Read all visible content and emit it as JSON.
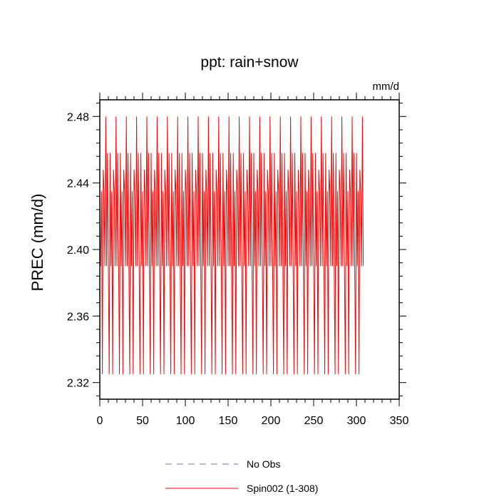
{
  "chart_data": {
    "type": "line",
    "title": "ppt: rain+snow",
    "units_label": "mm/d",
    "ylabel": "PREC  (mm/d)",
    "xlabel": "",
    "xlim": [
      0,
      350
    ],
    "ylim": [
      2.31,
      2.49
    ],
    "x_ticks": [
      0,
      50,
      100,
      150,
      200,
      250,
      300,
      350
    ],
    "x_tick_labels": [
      "0",
      "50",
      "100",
      "150",
      "200",
      "250",
      "300",
      "350"
    ],
    "y_ticks": [
      2.32,
      2.36,
      2.4,
      2.44,
      2.48
    ],
    "y_tick_labels": [
      "2.32",
      "2.36",
      "2.40",
      "2.44",
      "2.48"
    ],
    "grid": false,
    "legend_position": "bottom-center",
    "series": [
      {
        "name": "No Obs",
        "color": "#6f6fe0",
        "dash": "dashed",
        "x": [],
        "y": []
      },
      {
        "name": "Spin002 (1-308)",
        "color": "#ff0000",
        "dash": "solid",
        "x_start": 1,
        "x_end": 308,
        "cycle_length_months": 12,
        "monthly_cycle_values": [
          2.39,
          2.435,
          2.325,
          2.448,
          2.435,
          2.39,
          2.48,
          2.39,
          2.458,
          2.39,
          2.325,
          2.458
        ]
      }
    ]
  }
}
